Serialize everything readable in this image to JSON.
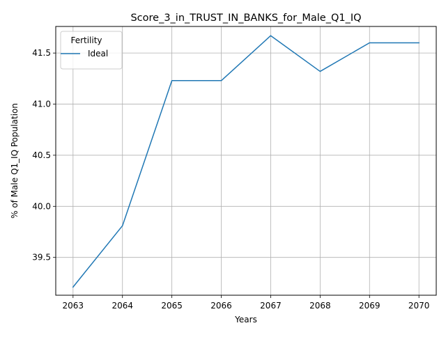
{
  "chart_data": {
    "type": "line",
    "title": "Score_3_in_TRUST_IN_BANKS_for_Male_Q1_IQ",
    "xlabel": "Years",
    "ylabel": "% of Male Q1_IQ Population",
    "x": [
      2063,
      2064,
      2065,
      2066,
      2067,
      2068,
      2069,
      2070
    ],
    "series": [
      {
        "name": "Ideal",
        "color": "#1f77b4",
        "values": [
          39.21,
          39.81,
          41.23,
          41.23,
          41.67,
          41.32,
          41.6,
          41.6
        ]
      }
    ],
    "xlim": [
      2062.65,
      2070.35
    ],
    "ylim": [
      39.13,
      41.76
    ],
    "xticks": [
      "2063",
      "2064",
      "2065",
      "2066",
      "2067",
      "2068",
      "2069",
      "2070"
    ],
    "yticks": [
      "39.5",
      "40.0",
      "40.5",
      "41.0",
      "41.5"
    ],
    "grid": true,
    "legend": {
      "title": "Fertility",
      "placement": "top-left"
    }
  }
}
